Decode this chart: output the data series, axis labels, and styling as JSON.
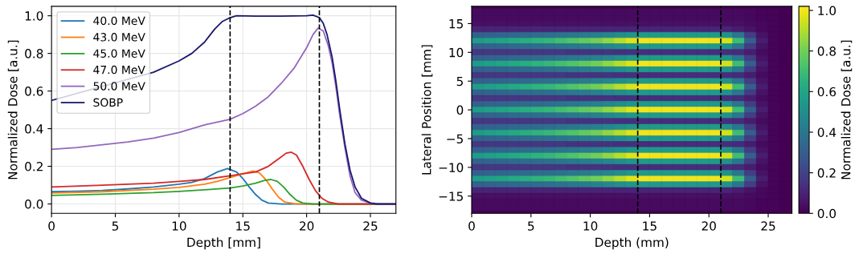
{
  "chart_data": [
    {
      "type": "line",
      "xlabel": "Depth [mm]",
      "ylabel": "Normalized Dose [a.u.]",
      "xlim": [
        0,
        27
      ],
      "ylim": [
        -0.05,
        1.05
      ],
      "xticks": [
        0,
        5,
        10,
        15,
        20,
        25
      ],
      "yticks": [
        {
          "value": 0,
          "label": "0.0"
        },
        {
          "value": 0.2,
          "label": "0.2"
        },
        {
          "value": 0.4,
          "label": "0.4"
        },
        {
          "value": 0.6,
          "label": "0.6"
        },
        {
          "value": 0.8,
          "label": "0.8"
        },
        {
          "value": 1.0,
          "label": "1.0"
        }
      ],
      "grid": true,
      "legend": "top left",
      "line_style": "solid",
      "marker": "none",
      "ref_lines": [
        {
          "axis": "x",
          "value": 14,
          "color": "#000000",
          "line_style": "dashed"
        },
        {
          "axis": "x",
          "value": 21,
          "color": "#000000",
          "line_style": "dashed"
        }
      ],
      "series": [
        {
          "name": "40.0 MeV",
          "color": "#1f77b4",
          "x": [
            0,
            2,
            4,
            6,
            8,
            10,
            11,
            12,
            13,
            13.8,
            14.5,
            15,
            15.5,
            16,
            16.5,
            17,
            18,
            27
          ],
          "values": [
            0.065,
            0.068,
            0.072,
            0.08,
            0.09,
            0.105,
            0.115,
            0.135,
            0.17,
            0.188,
            0.17,
            0.135,
            0.09,
            0.05,
            0.02,
            0.005,
            0,
            0
          ]
        },
        {
          "name": "43.0 MeV",
          "color": "#ff7f0e",
          "x": [
            0,
            4,
            8,
            10,
            12,
            13,
            14,
            15,
            15.8,
            16.3,
            16.8,
            17.3,
            17.8,
            18.3,
            19,
            20,
            27
          ],
          "values": [
            0.058,
            0.065,
            0.078,
            0.088,
            0.105,
            0.12,
            0.14,
            0.16,
            0.175,
            0.165,
            0.13,
            0.08,
            0.035,
            0.01,
            0.002,
            0,
            0
          ]
        },
        {
          "name": "45.0 MeV",
          "color": "#2ca02c",
          "x": [
            0,
            4,
            8,
            10,
            12,
            14,
            15,
            16,
            16.7,
            17.2,
            17.7,
            18.2,
            18.7,
            19.2,
            19.7,
            20.5,
            27
          ],
          "values": [
            0.045,
            0.052,
            0.06,
            0.067,
            0.075,
            0.085,
            0.095,
            0.11,
            0.125,
            0.13,
            0.12,
            0.09,
            0.05,
            0.02,
            0.005,
            0,
            0
          ]
        },
        {
          "name": "47.0 MeV",
          "color": "#d62728",
          "x": [
            0,
            4,
            8,
            10,
            12,
            14,
            15,
            16,
            17,
            17.8,
            18.4,
            18.8,
            19.2,
            19.7,
            20.2,
            20.7,
            21.2,
            21.7,
            22.5,
            27
          ],
          "values": [
            0.09,
            0.1,
            0.11,
            0.12,
            0.13,
            0.15,
            0.16,
            0.17,
            0.2,
            0.24,
            0.27,
            0.275,
            0.26,
            0.2,
            0.13,
            0.07,
            0.03,
            0.01,
            0,
            0
          ]
        },
        {
          "name": "50.0 MeV",
          "color": "#9467bd",
          "x": [
            0,
            2,
            4,
            6,
            8,
            10,
            12,
            14,
            15,
            16,
            17,
            18,
            19,
            20,
            20.5,
            20.9,
            21.3,
            21.7,
            22,
            22.3,
            22.6,
            23,
            23.4,
            23.8,
            24.3,
            25,
            26,
            27
          ],
          "values": [
            0.29,
            0.3,
            0.315,
            0.33,
            0.35,
            0.38,
            0.42,
            0.45,
            0.48,
            0.52,
            0.57,
            0.64,
            0.72,
            0.83,
            0.9,
            0.935,
            0.92,
            0.84,
            0.75,
            0.62,
            0.47,
            0.3,
            0.15,
            0.06,
            0.02,
            0.005,
            0,
            0
          ]
        },
        {
          "name": "SOBP",
          "color": "#191970",
          "x": [
            0,
            8,
            10,
            11,
            12,
            12.8,
            13.4,
            14,
            14.5,
            16,
            18,
            20,
            20.5,
            21,
            21.3,
            21.6,
            22,
            22.3,
            22.6,
            23,
            23.4,
            23.8,
            24.3,
            25,
            25.5,
            27
          ],
          "values": [
            0.55,
            0.7,
            0.76,
            0.8,
            0.86,
            0.93,
            0.97,
            0.99,
            1.0,
            0.998,
            0.998,
            1.0,
            1.003,
            0.99,
            0.96,
            0.9,
            0.78,
            0.65,
            0.5,
            0.32,
            0.18,
            0.09,
            0.03,
            0.005,
            0,
            0
          ]
        }
      ]
    },
    {
      "type": "heatmap",
      "xlabel": "Depth (mm)",
      "ylabel": "Lateral Position [mm]",
      "clabel": "Normalized Dose [a.u.]",
      "xlim": [
        0,
        27
      ],
      "ylim": [
        -18,
        18
      ],
      "xticks": [
        0,
        5,
        10,
        15,
        20,
        25
      ],
      "yticks": [
        {
          "value": -15,
          "label": "−15"
        },
        {
          "value": -10,
          "label": "−10"
        },
        {
          "value": -5,
          "label": "−5"
        },
        0,
        5,
        10,
        15
      ],
      "clim": [
        0,
        1.02
      ],
      "cticks": [
        {
          "value": 0,
          "label": "0.0"
        },
        {
          "value": 0.2,
          "label": "0.2"
        },
        {
          "value": 0.4,
          "label": "0.4"
        },
        {
          "value": 0.6,
          "label": "0.6"
        },
        {
          "value": 0.8,
          "label": "0.8"
        },
        {
          "value": 1.0,
          "label": "1.0"
        }
      ],
      "ref_lines": [
        {
          "axis": "x",
          "value": 14,
          "color": "#000000",
          "line_style": "dashed"
        },
        {
          "axis": "x",
          "value": 21,
          "color": "#000000",
          "line_style": "dashed"
        }
      ],
      "x": [
        0.5,
        1.5,
        2.5,
        3.5,
        4.5,
        5.5,
        6.5,
        7.5,
        8.5,
        9.5,
        10.5,
        11.5,
        12.5,
        13.5,
        14.5,
        15.5,
        16.5,
        17.5,
        18.5,
        19.5,
        20.5,
        21.5,
        22.5,
        23.5,
        24.5,
        25.5,
        26.5
      ],
      "y": [
        17,
        16,
        15,
        14,
        13,
        12,
        11,
        10,
        9,
        8,
        7,
        6,
        5,
        4,
        3,
        2,
        1,
        0,
        -1,
        -2,
        -3,
        -4,
        -5,
        -6,
        -7,
        -8,
        -9,
        -10,
        -11,
        -12,
        -13,
        -14,
        -15,
        -16,
        -17
      ],
      "cells": [
        [
          0.03,
          0.03,
          0.03,
          0.03,
          0.03,
          0.03,
          0.03,
          0.03,
          0.03,
          0.03,
          0.03,
          0.03,
          0.03,
          0.03,
          0.03,
          0.03,
          0.03,
          0.03,
          0.03,
          0.03,
          0.03,
          0.03,
          0.03,
          0.02,
          0.01,
          0.01,
          0.0
        ],
        [
          0.03,
          0.03,
          0.03,
          0.03,
          0.03,
          0.03,
          0.03,
          0.03,
          0.03,
          0.03,
          0.03,
          0.03,
          0.03,
          0.03,
          0.03,
          0.03,
          0.03,
          0.03,
          0.03,
          0.03,
          0.03,
          0.03,
          0.03,
          0.02,
          0.01,
          0.01,
          0.0
        ],
        [
          0.04,
          0.04,
          0.04,
          0.04,
          0.04,
          0.04,
          0.04,
          0.04,
          0.04,
          0.04,
          0.04,
          0.04,
          0.04,
          0.04,
          0.04,
          0.04,
          0.04,
          0.04,
          0.04,
          0.04,
          0.04,
          0.04,
          0.04,
          0.03,
          0.02,
          0.01,
          0.0
        ],
        [
          0.1,
          0.1,
          0.1,
          0.1,
          0.1,
          0.1,
          0.1,
          0.1,
          0.1,
          0.1,
          0.1,
          0.1,
          0.1,
          0.1,
          0.1,
          0.1,
          0.1,
          0.1,
          0.1,
          0.1,
          0.1,
          0.1,
          0.08,
          0.05,
          0.02,
          0.01,
          0.0
        ],
        [
          0.31,
          0.32,
          0.33,
          0.34,
          0.35,
          0.36,
          0.37,
          0.39,
          0.41,
          0.42,
          0.44,
          0.47,
          0.5,
          0.53,
          0.55,
          0.55,
          0.55,
          0.55,
          0.55,
          0.55,
          0.55,
          0.52,
          0.4,
          0.18,
          0.05,
          0.01,
          0.0
        ],
        [
          0.56,
          0.58,
          0.6,
          0.62,
          0.64,
          0.66,
          0.68,
          0.71,
          0.74,
          0.77,
          0.8,
          0.85,
          0.91,
          0.97,
          1.0,
          1.0,
          1.0,
          1.0,
          1.0,
          1.0,
          1.0,
          0.95,
          0.7,
          0.3,
          0.08,
          0.01,
          0.0
        ],
        [
          0.31,
          0.32,
          0.33,
          0.34,
          0.35,
          0.36,
          0.37,
          0.39,
          0.41,
          0.42,
          0.44,
          0.47,
          0.5,
          0.53,
          0.55,
          0.55,
          0.55,
          0.55,
          0.55,
          0.55,
          0.55,
          0.52,
          0.4,
          0.18,
          0.05,
          0.01,
          0.0
        ],
        [
          0.16,
          0.16,
          0.16,
          0.16,
          0.16,
          0.16,
          0.16,
          0.16,
          0.15,
          0.15,
          0.15,
          0.15,
          0.14,
          0.14,
          0.13,
          0.13,
          0.13,
          0.13,
          0.13,
          0.13,
          0.13,
          0.13,
          0.12,
          0.08,
          0.03,
          0.01,
          0.0
        ],
        [
          0.31,
          0.32,
          0.33,
          0.34,
          0.35,
          0.36,
          0.37,
          0.39,
          0.41,
          0.42,
          0.44,
          0.47,
          0.5,
          0.53,
          0.55,
          0.55,
          0.55,
          0.55,
          0.55,
          0.55,
          0.55,
          0.52,
          0.4,
          0.18,
          0.05,
          0.01,
          0.0
        ],
        [
          0.56,
          0.58,
          0.6,
          0.62,
          0.64,
          0.66,
          0.68,
          0.71,
          0.74,
          0.77,
          0.8,
          0.85,
          0.91,
          0.97,
          1.0,
          1.0,
          1.0,
          1.0,
          1.0,
          1.0,
          1.0,
          0.95,
          0.7,
          0.3,
          0.08,
          0.01,
          0.0
        ],
        [
          0.31,
          0.32,
          0.33,
          0.34,
          0.35,
          0.36,
          0.37,
          0.39,
          0.41,
          0.42,
          0.44,
          0.47,
          0.5,
          0.53,
          0.55,
          0.55,
          0.55,
          0.55,
          0.55,
          0.55,
          0.55,
          0.52,
          0.4,
          0.18,
          0.05,
          0.01,
          0.0
        ],
        [
          0.16,
          0.16,
          0.16,
          0.16,
          0.16,
          0.16,
          0.16,
          0.16,
          0.15,
          0.15,
          0.15,
          0.15,
          0.14,
          0.14,
          0.13,
          0.13,
          0.13,
          0.13,
          0.13,
          0.13,
          0.13,
          0.13,
          0.12,
          0.08,
          0.03,
          0.01,
          0.0
        ],
        [
          0.31,
          0.32,
          0.33,
          0.34,
          0.35,
          0.36,
          0.37,
          0.39,
          0.41,
          0.42,
          0.44,
          0.47,
          0.5,
          0.53,
          0.55,
          0.55,
          0.55,
          0.55,
          0.55,
          0.55,
          0.55,
          0.52,
          0.4,
          0.18,
          0.05,
          0.01,
          0.0
        ],
        [
          0.56,
          0.58,
          0.6,
          0.62,
          0.64,
          0.66,
          0.68,
          0.71,
          0.74,
          0.77,
          0.8,
          0.85,
          0.91,
          0.97,
          1.0,
          1.0,
          1.0,
          1.0,
          1.0,
          1.0,
          1.0,
          0.95,
          0.7,
          0.3,
          0.08,
          0.01,
          0.0
        ],
        [
          0.31,
          0.32,
          0.33,
          0.34,
          0.35,
          0.36,
          0.37,
          0.39,
          0.41,
          0.42,
          0.44,
          0.47,
          0.5,
          0.53,
          0.55,
          0.55,
          0.55,
          0.55,
          0.55,
          0.55,
          0.55,
          0.52,
          0.4,
          0.18,
          0.05,
          0.01,
          0.0
        ],
        [
          0.16,
          0.16,
          0.16,
          0.16,
          0.16,
          0.16,
          0.16,
          0.16,
          0.15,
          0.15,
          0.15,
          0.15,
          0.14,
          0.14,
          0.13,
          0.13,
          0.13,
          0.13,
          0.13,
          0.13,
          0.13,
          0.13,
          0.12,
          0.08,
          0.03,
          0.01,
          0.0
        ],
        [
          0.31,
          0.32,
          0.33,
          0.34,
          0.35,
          0.36,
          0.37,
          0.39,
          0.41,
          0.42,
          0.44,
          0.47,
          0.5,
          0.53,
          0.55,
          0.55,
          0.55,
          0.55,
          0.55,
          0.55,
          0.55,
          0.52,
          0.4,
          0.18,
          0.05,
          0.01,
          0.0
        ],
        [
          0.56,
          0.58,
          0.6,
          0.62,
          0.64,
          0.66,
          0.68,
          0.71,
          0.74,
          0.77,
          0.8,
          0.85,
          0.91,
          0.97,
          1.0,
          1.0,
          1.0,
          1.0,
          1.0,
          1.0,
          1.0,
          0.95,
          0.7,
          0.3,
          0.08,
          0.01,
          0.0
        ],
        [
          0.31,
          0.32,
          0.33,
          0.34,
          0.35,
          0.36,
          0.37,
          0.39,
          0.41,
          0.42,
          0.44,
          0.47,
          0.5,
          0.53,
          0.55,
          0.55,
          0.55,
          0.55,
          0.55,
          0.55,
          0.55,
          0.52,
          0.4,
          0.18,
          0.05,
          0.01,
          0.0
        ],
        [
          0.16,
          0.16,
          0.16,
          0.16,
          0.16,
          0.16,
          0.16,
          0.16,
          0.15,
          0.15,
          0.15,
          0.15,
          0.14,
          0.14,
          0.13,
          0.13,
          0.13,
          0.13,
          0.13,
          0.13,
          0.13,
          0.13,
          0.12,
          0.08,
          0.03,
          0.01,
          0.0
        ],
        [
          0.31,
          0.32,
          0.33,
          0.34,
          0.35,
          0.36,
          0.37,
          0.39,
          0.41,
          0.42,
          0.44,
          0.47,
          0.5,
          0.53,
          0.55,
          0.55,
          0.55,
          0.55,
          0.55,
          0.55,
          0.55,
          0.52,
          0.4,
          0.18,
          0.05,
          0.01,
          0.0
        ],
        [
          0.56,
          0.58,
          0.6,
          0.62,
          0.64,
          0.66,
          0.68,
          0.71,
          0.74,
          0.77,
          0.8,
          0.85,
          0.91,
          0.97,
          1.0,
          1.0,
          1.0,
          1.0,
          1.0,
          1.0,
          1.0,
          0.95,
          0.7,
          0.3,
          0.08,
          0.01,
          0.0
        ],
        [
          0.31,
          0.32,
          0.33,
          0.34,
          0.35,
          0.36,
          0.37,
          0.39,
          0.41,
          0.42,
          0.44,
          0.47,
          0.5,
          0.53,
          0.55,
          0.55,
          0.55,
          0.55,
          0.55,
          0.55,
          0.55,
          0.52,
          0.4,
          0.18,
          0.05,
          0.01,
          0.0
        ],
        [
          0.16,
          0.16,
          0.16,
          0.16,
          0.16,
          0.16,
          0.16,
          0.16,
          0.15,
          0.15,
          0.15,
          0.15,
          0.14,
          0.14,
          0.13,
          0.13,
          0.13,
          0.13,
          0.13,
          0.13,
          0.13,
          0.13,
          0.12,
          0.08,
          0.03,
          0.01,
          0.0
        ],
        [
          0.31,
          0.32,
          0.33,
          0.34,
          0.35,
          0.36,
          0.37,
          0.39,
          0.41,
          0.42,
          0.44,
          0.47,
          0.5,
          0.53,
          0.55,
          0.55,
          0.55,
          0.55,
          0.55,
          0.55,
          0.55,
          0.52,
          0.4,
          0.18,
          0.05,
          0.01,
          0.0
        ],
        [
          0.56,
          0.58,
          0.6,
          0.62,
          0.64,
          0.66,
          0.68,
          0.71,
          0.74,
          0.77,
          0.8,
          0.85,
          0.91,
          0.97,
          1.0,
          1.0,
          1.0,
          1.0,
          1.0,
          1.0,
          1.0,
          0.95,
          0.7,
          0.3,
          0.08,
          0.01,
          0.0
        ],
        [
          0.31,
          0.32,
          0.33,
          0.34,
          0.35,
          0.36,
          0.37,
          0.39,
          0.41,
          0.42,
          0.44,
          0.47,
          0.5,
          0.53,
          0.55,
          0.55,
          0.55,
          0.55,
          0.55,
          0.55,
          0.55,
          0.52,
          0.4,
          0.18,
          0.05,
          0.01,
          0.0
        ],
        [
          0.16,
          0.16,
          0.16,
          0.16,
          0.16,
          0.16,
          0.16,
          0.16,
          0.15,
          0.15,
          0.15,
          0.15,
          0.14,
          0.14,
          0.13,
          0.13,
          0.13,
          0.13,
          0.13,
          0.13,
          0.13,
          0.13,
          0.12,
          0.08,
          0.03,
          0.01,
          0.0
        ],
        [
          0.31,
          0.32,
          0.33,
          0.34,
          0.35,
          0.36,
          0.37,
          0.39,
          0.41,
          0.42,
          0.44,
          0.47,
          0.5,
          0.53,
          0.55,
          0.55,
          0.55,
          0.55,
          0.55,
          0.55,
          0.55,
          0.52,
          0.4,
          0.18,
          0.05,
          0.01,
          0.0
        ],
        [
          0.56,
          0.58,
          0.6,
          0.62,
          0.64,
          0.66,
          0.68,
          0.71,
          0.74,
          0.77,
          0.8,
          0.85,
          0.91,
          0.97,
          1.0,
          1.0,
          1.0,
          1.0,
          1.0,
          1.0,
          1.0,
          0.95,
          0.7,
          0.3,
          0.08,
          0.01,
          0.0
        ],
        [
          0.31,
          0.32,
          0.33,
          0.34,
          0.35,
          0.36,
          0.37,
          0.39,
          0.41,
          0.42,
          0.44,
          0.47,
          0.5,
          0.53,
          0.55,
          0.55,
          0.55,
          0.55,
          0.55,
          0.55,
          0.55,
          0.52,
          0.4,
          0.18,
          0.05,
          0.01,
          0.0
        ],
        [
          0.1,
          0.1,
          0.1,
          0.1,
          0.1,
          0.1,
          0.1,
          0.1,
          0.1,
          0.1,
          0.1,
          0.1,
          0.1,
          0.1,
          0.1,
          0.1,
          0.1,
          0.1,
          0.1,
          0.1,
          0.1,
          0.1,
          0.08,
          0.05,
          0.02,
          0.01,
          0.0
        ],
        [
          0.04,
          0.04,
          0.04,
          0.04,
          0.04,
          0.04,
          0.04,
          0.04,
          0.04,
          0.04,
          0.04,
          0.04,
          0.04,
          0.04,
          0.04,
          0.04,
          0.04,
          0.04,
          0.04,
          0.04,
          0.04,
          0.04,
          0.04,
          0.03,
          0.02,
          0.01,
          0.0
        ],
        [
          0.03,
          0.03,
          0.03,
          0.03,
          0.03,
          0.03,
          0.03,
          0.03,
          0.03,
          0.03,
          0.03,
          0.03,
          0.03,
          0.03,
          0.03,
          0.03,
          0.03,
          0.03,
          0.03,
          0.03,
          0.03,
          0.03,
          0.03,
          0.02,
          0.01,
          0.01,
          0.0
        ],
        [
          0.03,
          0.03,
          0.03,
          0.03,
          0.03,
          0.03,
          0.03,
          0.03,
          0.03,
          0.03,
          0.03,
          0.03,
          0.03,
          0.03,
          0.03,
          0.03,
          0.03,
          0.03,
          0.03,
          0.03,
          0.03,
          0.03,
          0.03,
          0.02,
          0.01,
          0.01,
          0.0
        ]
      ]
    }
  ]
}
